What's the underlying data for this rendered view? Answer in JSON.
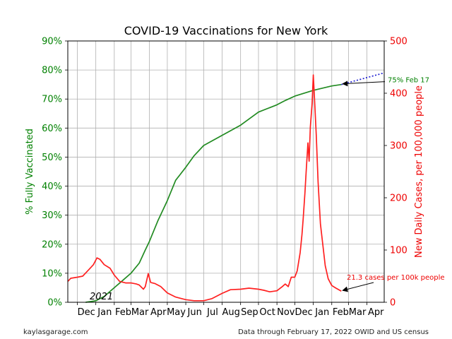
{
  "footer": {
    "left": "kaylasgarage.com",
    "right": "Data through February 17, 2022 OWID and US census"
  },
  "chart_data": {
    "type": "line",
    "title": "COVID-19 Vaccinations for New York",
    "ylabel_left": "% Fully Vaccinated",
    "ylabel_right": "New Daily Cases, per 100,000 people",
    "year_label": "2021",
    "x_tick_labels": [
      "Dec",
      "Jan",
      "Feb",
      "Mar",
      "Apr",
      "May",
      "Jun",
      "Jul",
      "Aug",
      "Sep",
      "Oct",
      "Nov",
      "Dec",
      "Jan",
      "Feb",
      "Mar",
      "Apr"
    ],
    "x_range": [
      "2020-11-15",
      "2022-04-30"
    ],
    "left_axis": {
      "range": [
        0,
        90
      ],
      "ticks": [
        "0%",
        "10%",
        "20%",
        "30%",
        "40%",
        "50%",
        "60%",
        "70%",
        "80%",
        "90%"
      ]
    },
    "right_axis": {
      "range": [
        0,
        500
      ],
      "ticks": [
        "0",
        "100",
        "200",
        "300",
        "400",
        "500"
      ]
    },
    "grid": true,
    "colors": {
      "vaccinated": "#228b22",
      "cases": "#ff2020",
      "projection": "#1f1fd0",
      "left_axis": "#008000",
      "right_axis": "#ee0000"
    },
    "annotations": [
      {
        "text": "75% Feb 17",
        "color": "#008000",
        "axis": "left",
        "x": "2022-02-17",
        "y": 75
      },
      {
        "text": "21.3 cases per 100k people",
        "color": "#ee0000",
        "axis": "right",
        "x": "2022-02-17",
        "y": 21.3
      }
    ],
    "series": [
      {
        "name": "",
        "axis": "left",
        "style": "solid",
        "points": [
          [
            "2020-12-15",
            0
          ],
          [
            "2021-01-01",
            0.5
          ],
          [
            "2021-01-15",
            2
          ],
          [
            "2021-02-01",
            5
          ],
          [
            "2021-02-15",
            7.5
          ],
          [
            "2021-03-01",
            10
          ],
          [
            "2021-03-15",
            13.5
          ],
          [
            "2021-03-25",
            18
          ],
          [
            "2021-04-01",
            21
          ],
          [
            "2021-04-15",
            28
          ],
          [
            "2021-05-01",
            35
          ],
          [
            "2021-05-15",
            42
          ],
          [
            "2021-06-01",
            46.5
          ],
          [
            "2021-06-15",
            50.5
          ],
          [
            "2021-07-01",
            54
          ],
          [
            "2021-08-01",
            57.5
          ],
          [
            "2021-09-01",
            61
          ],
          [
            "2021-10-01",
            65.5
          ],
          [
            "2021-11-01",
            68
          ],
          [
            "2021-11-15",
            69.5
          ],
          [
            "2021-12-01",
            71
          ],
          [
            "2022-01-01",
            73
          ],
          [
            "2022-02-01",
            74.5
          ],
          [
            "2022-02-17",
            75
          ]
        ]
      },
      {
        "name": "",
        "axis": "left",
        "style": "dotted",
        "points": [
          [
            "2022-02-17",
            75
          ],
          [
            "2022-04-30",
            79
          ]
        ]
      },
      {
        "name": "",
        "axis": "right",
        "style": "solid",
        "points": [
          [
            "2020-11-15",
            40
          ],
          [
            "2020-11-20",
            46
          ],
          [
            "2020-12-01",
            48
          ],
          [
            "2020-12-10",
            50
          ],
          [
            "2020-12-20",
            62
          ],
          [
            "2020-12-28",
            72
          ],
          [
            "2021-01-03",
            85
          ],
          [
            "2021-01-08",
            82
          ],
          [
            "2021-01-15",
            72
          ],
          [
            "2021-01-25",
            65
          ],
          [
            "2021-02-01",
            52
          ],
          [
            "2021-02-10",
            40
          ],
          [
            "2021-02-20",
            37
          ],
          [
            "2021-03-01",
            37
          ],
          [
            "2021-03-10",
            35
          ],
          [
            "2021-03-15",
            33
          ],
          [
            "2021-03-22",
            25
          ],
          [
            "2021-03-25",
            30
          ],
          [
            "2021-03-30",
            55
          ],
          [
            "2021-04-03",
            38
          ],
          [
            "2021-04-10",
            36
          ],
          [
            "2021-04-20",
            30
          ],
          [
            "2021-05-01",
            18
          ],
          [
            "2021-05-15",
            10
          ],
          [
            "2021-06-01",
            5
          ],
          [
            "2021-06-15",
            3
          ],
          [
            "2021-07-01",
            3
          ],
          [
            "2021-07-15",
            7
          ],
          [
            "2021-08-01",
            17
          ],
          [
            "2021-08-15",
            24
          ],
          [
            "2021-09-01",
            25
          ],
          [
            "2021-09-15",
            27
          ],
          [
            "2021-10-01",
            25
          ],
          [
            "2021-10-10",
            23
          ],
          [
            "2021-10-20",
            20
          ],
          [
            "2021-11-01",
            22
          ],
          [
            "2021-11-10",
            30
          ],
          [
            "2021-11-15",
            35
          ],
          [
            "2021-11-20",
            30
          ],
          [
            "2021-11-25",
            48
          ],
          [
            "2021-12-01",
            48
          ],
          [
            "2021-12-05",
            60
          ],
          [
            "2021-12-10",
            95
          ],
          [
            "2021-12-13",
            130
          ],
          [
            "2021-12-15",
            160
          ],
          [
            "2021-12-18",
            210
          ],
          [
            "2021-12-20",
            250
          ],
          [
            "2021-12-23",
            305
          ],
          [
            "2021-12-25",
            270
          ],
          [
            "2021-12-27",
            335
          ],
          [
            "2021-12-30",
            380
          ],
          [
            "2022-01-01",
            435
          ],
          [
            "2022-01-03",
            390
          ],
          [
            "2022-01-06",
            320
          ],
          [
            "2022-01-09",
            230
          ],
          [
            "2022-01-13",
            150
          ],
          [
            "2022-01-17",
            110
          ],
          [
            "2022-01-21",
            70
          ],
          [
            "2022-01-26",
            45
          ],
          [
            "2022-02-01",
            32
          ],
          [
            "2022-02-08",
            27
          ],
          [
            "2022-02-17",
            21.3
          ]
        ]
      }
    ]
  }
}
